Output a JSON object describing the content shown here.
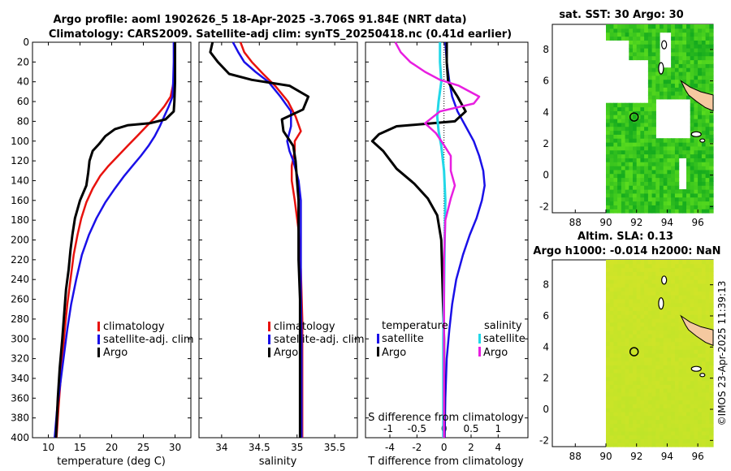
{
  "header": {
    "title_line1": "Argo profile: aoml 1902626_5 18-Apr-2025 -3.706S 91.84E (NRT data)",
    "title_line2": "Climatology: CARS2009. Satellite-adj clim: synTS_20250418.nc (0.41d earlier)"
  },
  "footer": {
    "watermark": "©IMOS 23-Apr-2025 11:39:13"
  },
  "colors": {
    "climatology": "#e8120e",
    "satellite": "#1a10e8",
    "argo": "#000000",
    "sat_sal": "#22d8e8",
    "argo_sal": "#e81ee0",
    "land": "#f5c9a0"
  },
  "chart_data": [
    {
      "id": "temperature",
      "type": "line",
      "xlabel": "temperature (deg C)",
      "xlim": [
        7.5,
        32.5
      ],
      "ylim": [
        0,
        400
      ],
      "xticks": [
        "10",
        "15",
        "20",
        "25",
        "30"
      ],
      "xtick_values": [
        10,
        15,
        20,
        25,
        30
      ],
      "yticks": [
        "0",
        "20",
        "40",
        "60",
        "80",
        "100",
        "120",
        "140",
        "160",
        "180",
        "200",
        "220",
        "240",
        "260",
        "280",
        "300",
        "320",
        "340",
        "360",
        "380",
        "400"
      ],
      "legend": [
        "climatology",
        "satellite-adj. clim",
        "Argo"
      ],
      "series": [
        {
          "name": "climatology",
          "color": "#e8120e",
          "width": 2.5,
          "points": [
            [
              29.9,
              0
            ],
            [
              29.9,
              20
            ],
            [
              29.8,
              40
            ],
            [
              29.3,
              55
            ],
            [
              28.3,
              65
            ],
            [
              27.0,
              75
            ],
            [
              25.5,
              85
            ],
            [
              24.0,
              95
            ],
            [
              22.5,
              105
            ],
            [
              21.0,
              115
            ],
            [
              19.5,
              125
            ],
            [
              18.2,
              135
            ],
            [
              17.0,
              148
            ],
            [
              16.0,
              162
            ],
            [
              15.2,
              178
            ],
            [
              14.6,
              195
            ],
            [
              14.0,
              215
            ],
            [
              13.5,
              240
            ],
            [
              13.0,
              265
            ],
            [
              12.6,
              290
            ],
            [
              12.2,
              320
            ],
            [
              11.9,
              345
            ],
            [
              11.6,
              370
            ],
            [
              11.3,
              400
            ]
          ]
        },
        {
          "name": "satellite-adj. clim",
          "color": "#1a10e8",
          "width": 2.5,
          "points": [
            [
              29.8,
              0
            ],
            [
              29.8,
              20
            ],
            [
              29.7,
              40
            ],
            [
              29.6,
              55
            ],
            [
              29.0,
              65
            ],
            [
              28.3,
              75
            ],
            [
              27.6,
              85
            ],
            [
              26.8,
              95
            ],
            [
              25.8,
              105
            ],
            [
              24.6,
              115
            ],
            [
              23.3,
              125
            ],
            [
              22.0,
              135
            ],
            [
              20.5,
              148
            ],
            [
              19.0,
              162
            ],
            [
              17.6,
              178
            ],
            [
              16.4,
              195
            ],
            [
              15.3,
              215
            ],
            [
              14.4,
              240
            ],
            [
              13.6,
              265
            ],
            [
              13.0,
              290
            ],
            [
              12.4,
              320
            ],
            [
              11.9,
              345
            ],
            [
              11.4,
              370
            ],
            [
              11.0,
              400
            ]
          ]
        },
        {
          "name": "Argo",
          "color": "#000000",
          "width": 3,
          "points": [
            [
              30.0,
              0
            ],
            [
              30.0,
              20
            ],
            [
              30.0,
              40
            ],
            [
              29.9,
              60
            ],
            [
              29.8,
              70
            ],
            [
              28.5,
              78
            ],
            [
              26.0,
              82
            ],
            [
              22.5,
              84
            ],
            [
              20.5,
              88
            ],
            [
              19.0,
              95
            ],
            [
              18.0,
              103
            ],
            [
              17.0,
              110
            ],
            [
              16.5,
              120
            ],
            [
              16.3,
              132
            ],
            [
              16.0,
              145
            ],
            [
              15.0,
              160
            ],
            [
              14.2,
              178
            ],
            [
              13.8,
              195
            ],
            [
              13.5,
              210
            ],
            [
              13.2,
              230
            ],
            [
              12.8,
              250
            ],
            [
              12.5,
              275
            ],
            [
              12.2,
              300
            ],
            [
              11.8,
              330
            ],
            [
              11.5,
              360
            ],
            [
              11.2,
              400
            ]
          ]
        }
      ]
    },
    {
      "id": "salinity",
      "type": "line",
      "xlabel": "salinity",
      "xlim": [
        33.7,
        35.8
      ],
      "ylim": [
        0,
        400
      ],
      "xticks": [
        "34",
        "34.5",
        "35",
        "35.5"
      ],
      "xtick_values": [
        34,
        34.5,
        35,
        35.5
      ],
      "legend": [
        "climatology",
        "satellite-adj. clim",
        "Argo"
      ],
      "series": [
        {
          "name": "climatology",
          "color": "#e8120e",
          "width": 2.5,
          "points": [
            [
              34.25,
              0
            ],
            [
              34.3,
              10
            ],
            [
              34.4,
              20
            ],
            [
              34.55,
              32
            ],
            [
              34.72,
              45
            ],
            [
              34.88,
              60
            ],
            [
              34.98,
              75
            ],
            [
              35.05,
              90
            ],
            [
              34.97,
              100
            ],
            [
              34.97,
              110
            ],
            [
              34.93,
              125
            ],
            [
              34.93,
              140
            ],
            [
              34.97,
              160
            ],
            [
              35.02,
              190
            ],
            [
              35.05,
              230
            ],
            [
              35.07,
              280
            ],
            [
              35.07,
              400
            ]
          ]
        },
        {
          "name": "satellite-adj. clim",
          "color": "#1a10e8",
          "width": 2.5,
          "points": [
            [
              34.15,
              0
            ],
            [
              34.22,
              10
            ],
            [
              34.3,
              20
            ],
            [
              34.45,
              30
            ],
            [
              34.62,
              40
            ],
            [
              34.78,
              55
            ],
            [
              34.92,
              70
            ],
            [
              34.92,
              85
            ],
            [
              34.87,
              100
            ],
            [
              34.9,
              110
            ],
            [
              34.95,
              120
            ],
            [
              35.02,
              140
            ],
            [
              35.05,
              160
            ],
            [
              35.05,
              200
            ],
            [
              35.05,
              250
            ],
            [
              35.06,
              300
            ],
            [
              35.06,
              400
            ]
          ]
        },
        {
          "name": "Argo",
          "color": "#000000",
          "width": 3,
          "points": [
            [
              33.88,
              0
            ],
            [
              33.85,
              10
            ],
            [
              33.95,
              20
            ],
            [
              34.1,
              32
            ],
            [
              34.4,
              38
            ],
            [
              34.9,
              44
            ],
            [
              35.15,
              55
            ],
            [
              35.08,
              68
            ],
            [
              34.8,
              78
            ],
            [
              34.82,
              90
            ],
            [
              34.95,
              105
            ],
            [
              34.98,
              120
            ],
            [
              35.0,
              140
            ],
            [
              35.02,
              160
            ],
            [
              35.02,
              190
            ],
            [
              35.02,
              220
            ],
            [
              35.04,
              260
            ],
            [
              35.04,
              300
            ],
            [
              35.04,
              400
            ]
          ]
        }
      ]
    },
    {
      "id": "difference",
      "type": "line",
      "xlabel": "T difference from climatology",
      "xlabel2": "S difference from climatology",
      "xlim": [
        -5.8,
        6.2
      ],
      "ylim": [
        0,
        400
      ],
      "xticks": [
        "-4",
        "-2",
        "0",
        "2",
        "4"
      ],
      "xtick_values": [
        -4,
        -2,
        0,
        2,
        4
      ],
      "xticks2": [
        "-1",
        "-0.5",
        "0",
        "0.5",
        "1"
      ],
      "legend_temperature_title": "temperature",
      "legend_salinity_title": "salinity",
      "legend_temperature": [
        "satellite",
        "Argo"
      ],
      "legend_salinity": [
        "satellite",
        "Argo"
      ],
      "series": [
        {
          "name": "T satellite",
          "color": "#1a10e8",
          "width": 2.5,
          "points": [
            [
              0.1,
              0
            ],
            [
              0.2,
              20
            ],
            [
              0.4,
              40
            ],
            [
              0.6,
              55
            ],
            [
              1.0,
              70
            ],
            [
              1.6,
              85
            ],
            [
              2.2,
              100
            ],
            [
              2.6,
              115
            ],
            [
              2.9,
              130
            ],
            [
              3.0,
              145
            ],
            [
              2.8,
              160
            ],
            [
              2.4,
              178
            ],
            [
              1.9,
              195
            ],
            [
              1.4,
              215
            ],
            [
              0.9,
              240
            ],
            [
              0.6,
              265
            ],
            [
              0.4,
              290
            ],
            [
              0.2,
              320
            ],
            [
              0.1,
              360
            ],
            [
              0.05,
              400
            ]
          ]
        },
        {
          "name": "T Argo",
          "color": "#000000",
          "width": 3,
          "points": [
            [
              0.2,
              0
            ],
            [
              0.2,
              20
            ],
            [
              0.3,
              40
            ],
            [
              1.0,
              55
            ],
            [
              1.6,
              70
            ],
            [
              0.8,
              80
            ],
            [
              -3.5,
              85
            ],
            [
              -4.8,
              93
            ],
            [
              -5.3,
              100
            ],
            [
              -4.5,
              110
            ],
            [
              -3.5,
              128
            ],
            [
              -2.2,
              143
            ],
            [
              -1.2,
              158
            ],
            [
              -0.5,
              175
            ],
            [
              -0.2,
              200
            ],
            [
              -0.1,
              250
            ],
            [
              0.0,
              300
            ],
            [
              0.0,
              400
            ]
          ]
        },
        {
          "name": "S satellite",
          "color": "#22d8e8",
          "width": 3,
          "points": [
            [
              -0.3,
              0
            ],
            [
              -0.3,
              20
            ],
            [
              -0.2,
              40
            ],
            [
              -0.4,
              60
            ],
            [
              -0.5,
              75
            ],
            [
              -0.4,
              90
            ],
            [
              -0.2,
              105
            ],
            [
              0.0,
              130
            ],
            [
              0.1,
              160
            ],
            [
              0.05,
              200
            ],
            [
              0.0,
              250
            ],
            [
              -0.05,
              300
            ],
            [
              -0.05,
              400
            ]
          ]
        },
        {
          "name": "S Argo",
          "color": "#e81ee0",
          "width": 2.5,
          "points": [
            [
              -3.6,
              0
            ],
            [
              -3.2,
              10
            ],
            [
              -2.5,
              20
            ],
            [
              -1.4,
              30
            ],
            [
              -0.3,
              38
            ],
            [
              1.1,
              44
            ],
            [
              2.6,
              55
            ],
            [
              2.2,
              62
            ],
            [
              -0.3,
              70
            ],
            [
              -1.4,
              82
            ],
            [
              -0.6,
              92
            ],
            [
              -0.1,
              102
            ],
            [
              0.5,
              115
            ],
            [
              0.5,
              130
            ],
            [
              0.8,
              145
            ],
            [
              0.5,
              158
            ],
            [
              0.1,
              180
            ],
            [
              0.0,
              220
            ],
            [
              0.0,
              400
            ]
          ]
        }
      ]
    },
    {
      "id": "sst_map",
      "type": "heatmap",
      "title": "sat. SST: 30 Argo: 30",
      "xlim": [
        86.5,
        97.0
      ],
      "ylim": [
        -2.4,
        9.6
      ],
      "xticks": [
        "88",
        "90",
        "92",
        "94",
        "96"
      ],
      "xtick_values": [
        88,
        90,
        92,
        94,
        96
      ],
      "yticks": [
        "-2",
        "0",
        "2",
        "4",
        "6",
        "8"
      ],
      "ytick_values": [
        -2,
        0,
        2,
        4,
        6,
        8
      ],
      "float_position": [
        91.84,
        3.7
      ]
    },
    {
      "id": "sla_map",
      "type": "heatmap",
      "title_line1": "Altim. SLA: 0.13",
      "title_line2": "Argo h1000: -0.014 h2000: NaN",
      "xlim": [
        86.5,
        97.0
      ],
      "ylim": [
        -2.4,
        9.6
      ],
      "xticks": [
        "88",
        "90",
        "92",
        "94",
        "96"
      ],
      "xtick_values": [
        88,
        90,
        92,
        94,
        96
      ],
      "yticks": [
        "-2",
        "0",
        "2",
        "4",
        "6",
        "8"
      ],
      "ytick_values": [
        -2,
        0,
        2,
        4,
        6,
        8
      ],
      "float_position": [
        91.84,
        3.7
      ]
    }
  ]
}
